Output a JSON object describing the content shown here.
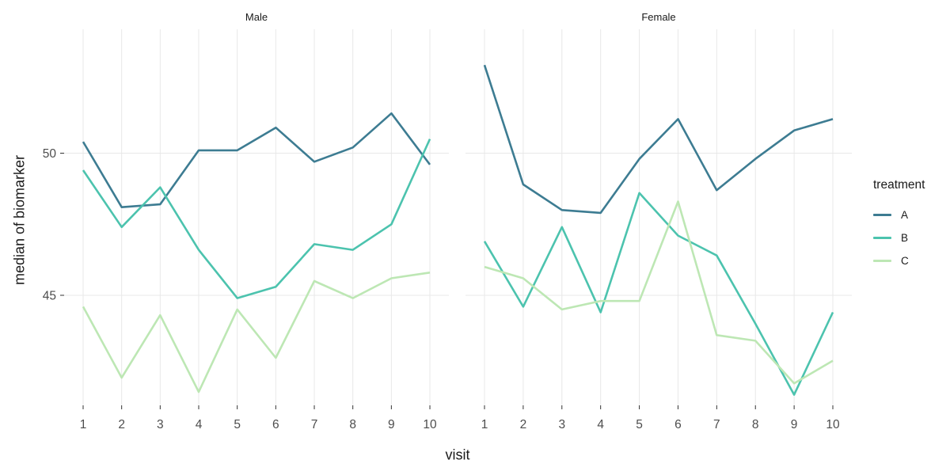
{
  "chart_data": {
    "type": "line",
    "title": "",
    "xlabel": "visit",
    "ylabel": "median of biomarker",
    "x": [
      1,
      2,
      3,
      4,
      5,
      6,
      7,
      8,
      9,
      10
    ],
    "y_ticks": [
      45,
      50
    ],
    "ylim": [
      41.1,
      54.4
    ],
    "grid": "major-only",
    "legend_position": "right",
    "legend_title": "treatment",
    "colors": {
      "A": "#3d7c92",
      "B": "#4cc3ae",
      "C": "#bde7b4",
      "gridline": "#e8e8e8",
      "tick_text": "#4d4d4d"
    },
    "facets": [
      {
        "label": "Male",
        "series": [
          {
            "name": "A",
            "color": "#3d7c92",
            "values": [
              50.4,
              48.1,
              48.2,
              50.1,
              50.1,
              50.9,
              49.7,
              50.2,
              51.4,
              49.6
            ]
          },
          {
            "name": "B",
            "color": "#4cc3ae",
            "values": [
              49.4,
              47.4,
              48.8,
              46.6,
              44.9,
              45.3,
              46.8,
              46.6,
              47.5,
              50.5
            ]
          },
          {
            "name": "C",
            "color": "#bde7b4",
            "values": [
              44.6,
              42.1,
              44.3,
              41.6,
              44.5,
              42.8,
              45.5,
              44.9,
              45.6,
              45.8
            ]
          }
        ]
      },
      {
        "label": "Female",
        "series": [
          {
            "name": "A",
            "color": "#3d7c92",
            "values": [
              53.1,
              48.9,
              48.0,
              47.9,
              49.8,
              51.2,
              48.7,
              49.8,
              50.8,
              51.2
            ]
          },
          {
            "name": "B",
            "color": "#4cc3ae",
            "values": [
              46.9,
              44.6,
              47.4,
              44.4,
              48.6,
              47.1,
              46.4,
              44.0,
              41.5,
              44.4
            ]
          },
          {
            "name": "C",
            "color": "#bde7b4",
            "values": [
              46.0,
              45.6,
              44.5,
              44.8,
              44.8,
              48.3,
              43.6,
              43.4,
              41.9,
              42.7
            ]
          }
        ]
      }
    ]
  }
}
